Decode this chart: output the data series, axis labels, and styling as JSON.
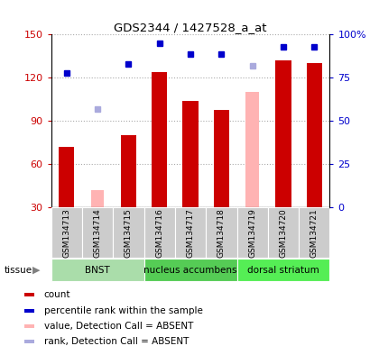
{
  "title": "GDS2344 / 1427528_a_at",
  "samples": [
    "GSM134713",
    "GSM134714",
    "GSM134715",
    "GSM134716",
    "GSM134717",
    "GSM134718",
    "GSM134719",
    "GSM134720",
    "GSM134721"
  ],
  "count_values": [
    72,
    null,
    80,
    124,
    104,
    98,
    null,
    132,
    130
  ],
  "absent_value_values": [
    null,
    42,
    null,
    null,
    null,
    null,
    110,
    null,
    null
  ],
  "percentile_rank": [
    78,
    null,
    83,
    95,
    89,
    89,
    null,
    93,
    93
  ],
  "absent_rank_values": [
    null,
    57,
    null,
    null,
    null,
    null,
    82,
    null,
    null
  ],
  "ylim": [
    30,
    150
  ],
  "yticks": [
    30,
    60,
    90,
    120,
    150
  ],
  "y2ticks": [
    0,
    25,
    50,
    75,
    100
  ],
  "y2lim": [
    0,
    100
  ],
  "bar_width": 0.5,
  "count_color": "#cc0000",
  "absent_val_color": "#ffb3b3",
  "rank_color": "#0000cc",
  "absent_rank_color": "#aaaadd",
  "tissue_groups": [
    {
      "label": "BNST",
      "start": 0,
      "end": 3,
      "color": "#aaddaa"
    },
    {
      "label": "nucleus accumbens",
      "start": 3,
      "end": 6,
      "color": "#55cc55"
    },
    {
      "label": "dorsal striatum",
      "start": 6,
      "end": 9,
      "color": "#55ee55"
    }
  ],
  "ylabel_color": "#cc0000",
  "y2label_color": "#0000cc",
  "grid_color": "#aaaaaa",
  "sample_area_color": "#cccccc",
  "legend_items": [
    {
      "label": "count",
      "color": "#cc0000"
    },
    {
      "label": "percentile rank within the sample",
      "color": "#0000cc"
    },
    {
      "label": "value, Detection Call = ABSENT",
      "color": "#ffb3b3"
    },
    {
      "label": "rank, Detection Call = ABSENT",
      "color": "#aaaadd"
    }
  ]
}
